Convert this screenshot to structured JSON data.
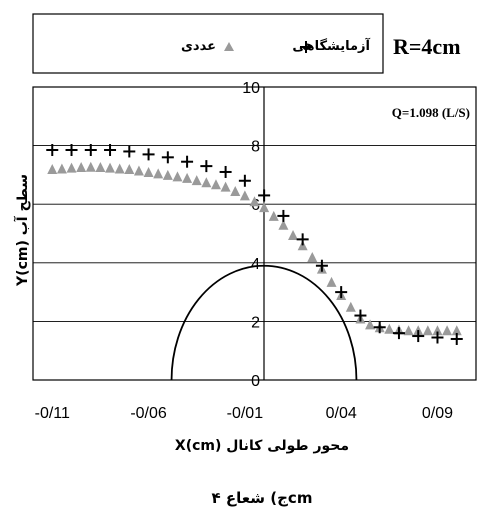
{
  "legend": {
    "numeric_label": "عددی",
    "experimental_label": "آزمایشگاهی"
  },
  "radius_label": "R=4cm",
  "caption": "ج) شعاع ۴cm",
  "chart_data": {
    "type": "scatter",
    "annotation": "Q=1.098 (L/S)",
    "xlabel": "X(cm) محور طولی کانال",
    "ylabel": "Y(cm) سطح آب",
    "x_tick_labels": [
      "-0/11",
      "-0/06",
      "-0/01",
      "0/04",
      "0/09"
    ],
    "x_ticks": [
      -0.11,
      -0.06,
      -0.01,
      0.04,
      0.09
    ],
    "y_ticks": [
      0,
      2,
      4,
      6,
      8,
      10
    ],
    "xlim": [
      -0.12,
      0.11
    ],
    "ylim": [
      0,
      10
    ],
    "grid": "horizontal",
    "colors": {
      "numeric": "#9a9a9a",
      "experimental": "#000000"
    },
    "series": [
      {
        "name": "عددی",
        "marker": "triangle",
        "x": [
          -0.11,
          -0.105,
          -0.1,
          -0.095,
          -0.09,
          -0.085,
          -0.08,
          -0.075,
          -0.07,
          -0.065,
          -0.06,
          -0.055,
          -0.05,
          -0.045,
          -0.04,
          -0.035,
          -0.03,
          -0.025,
          -0.02,
          -0.015,
          -0.01,
          -0.005,
          0.0,
          0.005,
          0.01,
          0.015,
          0.02,
          0.025,
          0.03,
          0.035,
          0.04,
          0.045,
          0.05,
          0.055,
          0.06,
          0.065,
          0.07,
          0.075,
          0.08,
          0.085,
          0.09,
          0.095,
          0.1
        ],
        "y": [
          7.2,
          7.22,
          7.25,
          7.27,
          7.28,
          7.27,
          7.25,
          7.22,
          7.2,
          7.15,
          7.1,
          7.05,
          7.0,
          6.95,
          6.9,
          6.82,
          6.75,
          6.68,
          6.6,
          6.45,
          6.3,
          6.1,
          5.9,
          5.6,
          5.3,
          4.95,
          4.6,
          4.2,
          3.8,
          3.35,
          2.9,
          2.5,
          2.1,
          1.9,
          1.8,
          1.75,
          1.72,
          1.7,
          1.7,
          1.7,
          1.7,
          1.7,
          1.7
        ]
      },
      {
        "name": "آزمایشگاهی",
        "marker": "plus",
        "x": [
          -0.11,
          -0.1,
          -0.09,
          -0.08,
          -0.07,
          -0.06,
          -0.05,
          -0.04,
          -0.03,
          -0.02,
          -0.01,
          0.0,
          0.01,
          0.02,
          0.03,
          0.04,
          0.05,
          0.06,
          0.07,
          0.08,
          0.09,
          0.1
        ],
        "y": [
          7.85,
          7.85,
          7.85,
          7.85,
          7.8,
          7.7,
          7.6,
          7.45,
          7.3,
          7.1,
          6.8,
          6.3,
          5.6,
          4.8,
          3.9,
          3.0,
          2.2,
          1.8,
          1.6,
          1.5,
          1.45,
          1.4
        ]
      }
    ],
    "obstacle": {
      "shape": "semi-ellipse",
      "center_x": -0.01,
      "half_width": 0.048,
      "height": 3.9
    }
  }
}
